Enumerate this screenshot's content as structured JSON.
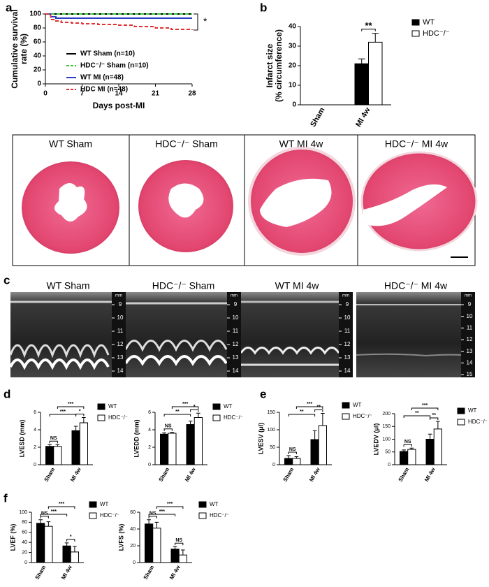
{
  "panel_labels": [
    "a",
    "b",
    "c",
    "d",
    "e",
    "f"
  ],
  "histology": {
    "titles": [
      "WT Sham",
      "HDC⁻/⁻ Sham",
      "WT MI 4w",
      "HDC⁻/⁻ MI 4w"
    ]
  },
  "echo": {
    "titles": [
      "WT Sham",
      "HDC⁻/⁻ Sham",
      "WT MI 4w",
      "HDC⁻/⁻ MI 4w"
    ],
    "scale_unit": "mm",
    "scales": [
      [
        9,
        10,
        11,
        12,
        13,
        14
      ],
      [
        9,
        10,
        11,
        12,
        13,
        14
      ],
      [
        9,
        10,
        11,
        12,
        13,
        14
      ],
      [
        9,
        10,
        11,
        12,
        13,
        14,
        15
      ]
    ]
  },
  "chart_data": [
    {
      "type": "line",
      "step": true,
      "x": [
        0,
        1,
        2,
        3,
        5,
        7,
        10,
        14,
        17,
        21,
        24,
        28
      ],
      "xlabel": "Days post-MI",
      "ylabel": [
        "Cumulative survival",
        "rate (%)"
      ],
      "xlim": [
        0,
        28
      ],
      "xticks": [
        0,
        7,
        14,
        21,
        28
      ],
      "ylim": [
        0,
        100
      ],
      "yticks": [
        0,
        20,
        40,
        60,
        80,
        100
      ],
      "annotations": [
        "*"
      ],
      "series": [
        {
          "name": "WT Sham (n=10)",
          "color": "#000000",
          "dash": false,
          "values": [
            100,
            100,
            100,
            100,
            100,
            100,
            100,
            100,
            100,
            100,
            100,
            100
          ]
        },
        {
          "name": "HDC⁻/⁻ Sham (n=10)",
          "color": "#3cc43c",
          "dash": true,
          "values": [
            100,
            100,
            100,
            100,
            100,
            100,
            100,
            100,
            100,
            100,
            100,
            100
          ]
        },
        {
          "name": "WT MI (n=48)",
          "color": "#2a3fc4",
          "dash": false,
          "values": [
            100,
            96,
            94,
            94,
            94,
            94,
            94,
            94,
            94,
            94,
            94,
            94
          ]
        },
        {
          "name": "HDC MI (n=48)",
          "color": "#e03030",
          "dash": true,
          "values": [
            100,
            92,
            90,
            88,
            87,
            86,
            85,
            84,
            82,
            80,
            78,
            77
          ]
        }
      ]
    },
    {
      "type": "bar",
      "ylabel": [
        "Infarct size",
        "(% circumference)"
      ],
      "categories": [
        "Sham",
        "MI 4w"
      ],
      "ylim": [
        0,
        40
      ],
      "yticks": [
        0,
        10,
        20,
        30,
        40
      ],
      "annotations": [
        "**"
      ],
      "series": [
        {
          "name": "WT",
          "color": "#000000",
          "values": [
            null,
            21
          ],
          "errors": [
            null,
            2.5
          ]
        },
        {
          "name": "HDC⁻/⁻",
          "color": "#ffffff",
          "values": [
            null,
            32
          ],
          "errors": [
            null,
            4.5
          ]
        }
      ]
    },
    {
      "type": "bar",
      "ylabel": [
        "LVESD (mm)"
      ],
      "categories": [
        "Sham",
        "MI 4w"
      ],
      "ylim": [
        0,
        6
      ],
      "yticks": [
        0,
        2,
        4,
        6
      ],
      "annotations": [
        "NS",
        "*",
        "***",
        "***"
      ],
      "series": [
        {
          "name": "WT",
          "color": "#000000",
          "values": [
            2.1,
            3.9
          ],
          "errors": [
            0.2,
            0.5
          ]
        },
        {
          "name": "HDC⁻/⁻",
          "color": "#ffffff",
          "values": [
            2.1,
            4.8
          ],
          "errors": [
            0.2,
            0.6
          ]
        }
      ]
    },
    {
      "type": "bar",
      "ylabel": [
        "LVEDD (mm)"
      ],
      "categories": [
        "Sham",
        "MI 4w"
      ],
      "ylim": [
        0,
        6
      ],
      "yticks": [
        0,
        2,
        4,
        6
      ],
      "annotations": [
        "NS",
        "*",
        "**",
        "***"
      ],
      "series": [
        {
          "name": "WT",
          "color": "#000000",
          "values": [
            3.5,
            4.6
          ],
          "errors": [
            0.15,
            0.4
          ]
        },
        {
          "name": "HDC⁻/⁻",
          "color": "#ffffff",
          "values": [
            3.6,
            5.4
          ],
          "errors": [
            0.1,
            0.5
          ]
        }
      ]
    },
    {
      "type": "bar",
      "ylabel": [
        "LVESV (μl)"
      ],
      "categories": [
        "Sham",
        "MI 4w"
      ],
      "ylim": [
        0,
        150
      ],
      "yticks": [
        0,
        50,
        100,
        150
      ],
      "annotations": [
        "NS",
        "**",
        "**",
        "***"
      ],
      "series": [
        {
          "name": "WT",
          "color": "#000000",
          "values": [
            18,
            72
          ],
          "errors": [
            8,
            25
          ]
        },
        {
          "name": "HDC⁻/⁻",
          "color": "#ffffff",
          "values": [
            18,
            112
          ],
          "errors": [
            5,
            35
          ]
        }
      ]
    },
    {
      "type": "bar",
      "ylabel": [
        "LVEDV (μl)"
      ],
      "categories": [
        "Sham",
        "MI 4w"
      ],
      "ylim": [
        0,
        200
      ],
      "yticks": [
        0,
        50,
        100,
        150,
        200
      ],
      "annotations": [
        "NS",
        "**",
        "**",
        "***"
      ],
      "series": [
        {
          "name": "WT",
          "color": "#000000",
          "values": [
            52,
            100
          ],
          "errors": [
            6,
            20
          ]
        },
        {
          "name": "HDC⁻/⁻",
          "color": "#ffffff",
          "values": [
            60,
            140
          ],
          "errors": [
            5,
            30
          ]
        }
      ]
    },
    {
      "type": "bar",
      "ylabel": [
        "LVEF (%)"
      ],
      "categories": [
        "Sham",
        "MI 4w"
      ],
      "ylim": [
        0,
        100
      ],
      "yticks": [
        0,
        20,
        40,
        60,
        80,
        100
      ],
      "annotations": [
        "NS",
        "*",
        "***",
        "***"
      ],
      "series": [
        {
          "name": "WT",
          "color": "#000000",
          "values": [
            78,
            33
          ],
          "errors": [
            7,
            6
          ]
        },
        {
          "name": "HDC⁻/⁻",
          "color": "#ffffff",
          "values": [
            72,
            21
          ],
          "errors": [
            9,
            11
          ]
        }
      ]
    },
    {
      "type": "bar",
      "ylabel": [
        "LVFS (%)"
      ],
      "categories": [
        "Sham",
        "MI 4w"
      ],
      "ylim": [
        0,
        60
      ],
      "yticks": [
        0,
        20,
        40,
        60
      ],
      "annotations": [
        "NS",
        "NS",
        "***",
        "***"
      ],
      "series": [
        {
          "name": "WT",
          "color": "#000000",
          "values": [
            46,
            16
          ],
          "errors": [
            5,
            3
          ]
        },
        {
          "name": "HDC⁻/⁻",
          "color": "#ffffff",
          "values": [
            41,
            9
          ],
          "errors": [
            7,
            6
          ]
        }
      ]
    }
  ]
}
